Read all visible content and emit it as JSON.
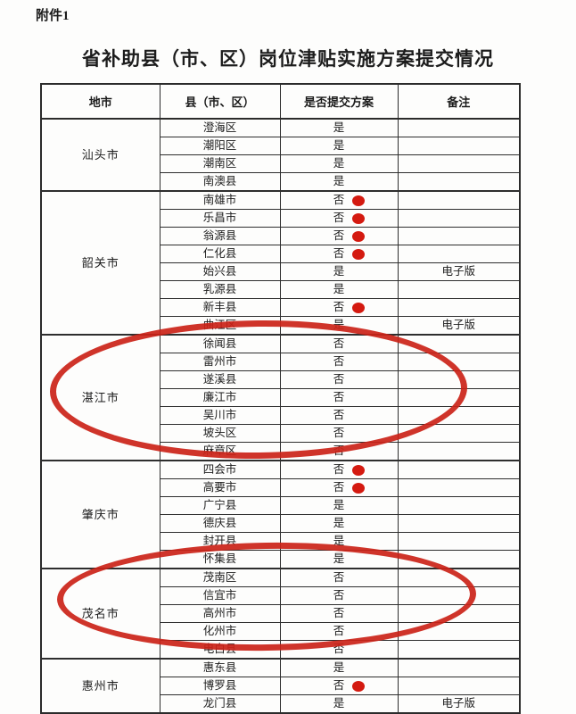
{
  "page": {
    "attachment_label": "附件1",
    "title": "省补助县（市、区）岗位津贴实施方案提交情况"
  },
  "table": {
    "headers": [
      "地市",
      "县（市、区）",
      "是否提交方案",
      "备注"
    ],
    "groups": [
      {
        "city": "汕头市",
        "circled": false,
        "rows": [
          {
            "county": "澄海区",
            "submitted": "是",
            "dot": false,
            "remark": ""
          },
          {
            "county": "潮阳区",
            "submitted": "是",
            "dot": false,
            "remark": ""
          },
          {
            "county": "潮南区",
            "submitted": "是",
            "dot": false,
            "remark": ""
          },
          {
            "county": "南澳县",
            "submitted": "是",
            "dot": false,
            "remark": ""
          }
        ]
      },
      {
        "city": "韶关市",
        "circled": false,
        "rows": [
          {
            "county": "南雄市",
            "submitted": "否",
            "dot": true,
            "remark": ""
          },
          {
            "county": "乐昌市",
            "submitted": "否",
            "dot": true,
            "remark": ""
          },
          {
            "county": "翁源县",
            "submitted": "否",
            "dot": true,
            "remark": ""
          },
          {
            "county": "仁化县",
            "submitted": "否",
            "dot": true,
            "remark": ""
          },
          {
            "county": "始兴县",
            "submitted": "是",
            "dot": false,
            "remark": "电子版"
          },
          {
            "county": "乳源县",
            "submitted": "是",
            "dot": false,
            "remark": ""
          },
          {
            "county": "新丰县",
            "submitted": "否",
            "dot": true,
            "remark": ""
          },
          {
            "county": "曲江区",
            "submitted": "是",
            "dot": false,
            "remark": "电子版"
          }
        ]
      },
      {
        "city": "湛江市",
        "circled": true,
        "rows": [
          {
            "county": "徐闻县",
            "submitted": "否",
            "dot": false,
            "remark": ""
          },
          {
            "county": "雷州市",
            "submitted": "否",
            "dot": false,
            "remark": ""
          },
          {
            "county": "遂溪县",
            "submitted": "否",
            "dot": false,
            "remark": ""
          },
          {
            "county": "廉江市",
            "submitted": "否",
            "dot": false,
            "remark": ""
          },
          {
            "county": "吴川市",
            "submitted": "否",
            "dot": false,
            "remark": ""
          },
          {
            "county": "坡头区",
            "submitted": "否",
            "dot": false,
            "remark": ""
          },
          {
            "county": "麻章区",
            "submitted": "否",
            "dot": false,
            "remark": ""
          }
        ]
      },
      {
        "city": "肇庆市",
        "circled": false,
        "rows": [
          {
            "county": "四会市",
            "submitted": "否",
            "dot": true,
            "remark": ""
          },
          {
            "county": "高要市",
            "submitted": "否",
            "dot": true,
            "remark": ""
          },
          {
            "county": "广宁县",
            "submitted": "是",
            "dot": false,
            "remark": ""
          },
          {
            "county": "德庆县",
            "submitted": "是",
            "dot": false,
            "remark": ""
          },
          {
            "county": "封开县",
            "submitted": "是",
            "dot": false,
            "remark": ""
          },
          {
            "county": "怀集县",
            "submitted": "是",
            "dot": false,
            "remark": ""
          }
        ]
      },
      {
        "city": "茂名市",
        "circled": true,
        "rows": [
          {
            "county": "茂南区",
            "submitted": "否",
            "dot": false,
            "remark": ""
          },
          {
            "county": "信宜市",
            "submitted": "否",
            "dot": false,
            "remark": ""
          },
          {
            "county": "高州市",
            "submitted": "否",
            "dot": false,
            "remark": ""
          },
          {
            "county": "化州市",
            "submitted": "否",
            "dot": false,
            "remark": ""
          },
          {
            "county": "电白县",
            "submitted": "否",
            "dot": false,
            "remark": ""
          }
        ]
      },
      {
        "city": "惠州市",
        "circled": false,
        "rows": [
          {
            "county": "惠东县",
            "submitted": "是",
            "dot": false,
            "remark": ""
          },
          {
            "county": "博罗县",
            "submitted": "否",
            "dot": true,
            "remark": ""
          },
          {
            "county": "龙门县",
            "submitted": "是",
            "dot": false,
            "remark": "电子版"
          }
        ]
      }
    ]
  },
  "annotations": {
    "dot_color": "#d41a10",
    "oval_color": "#cb2318"
  }
}
